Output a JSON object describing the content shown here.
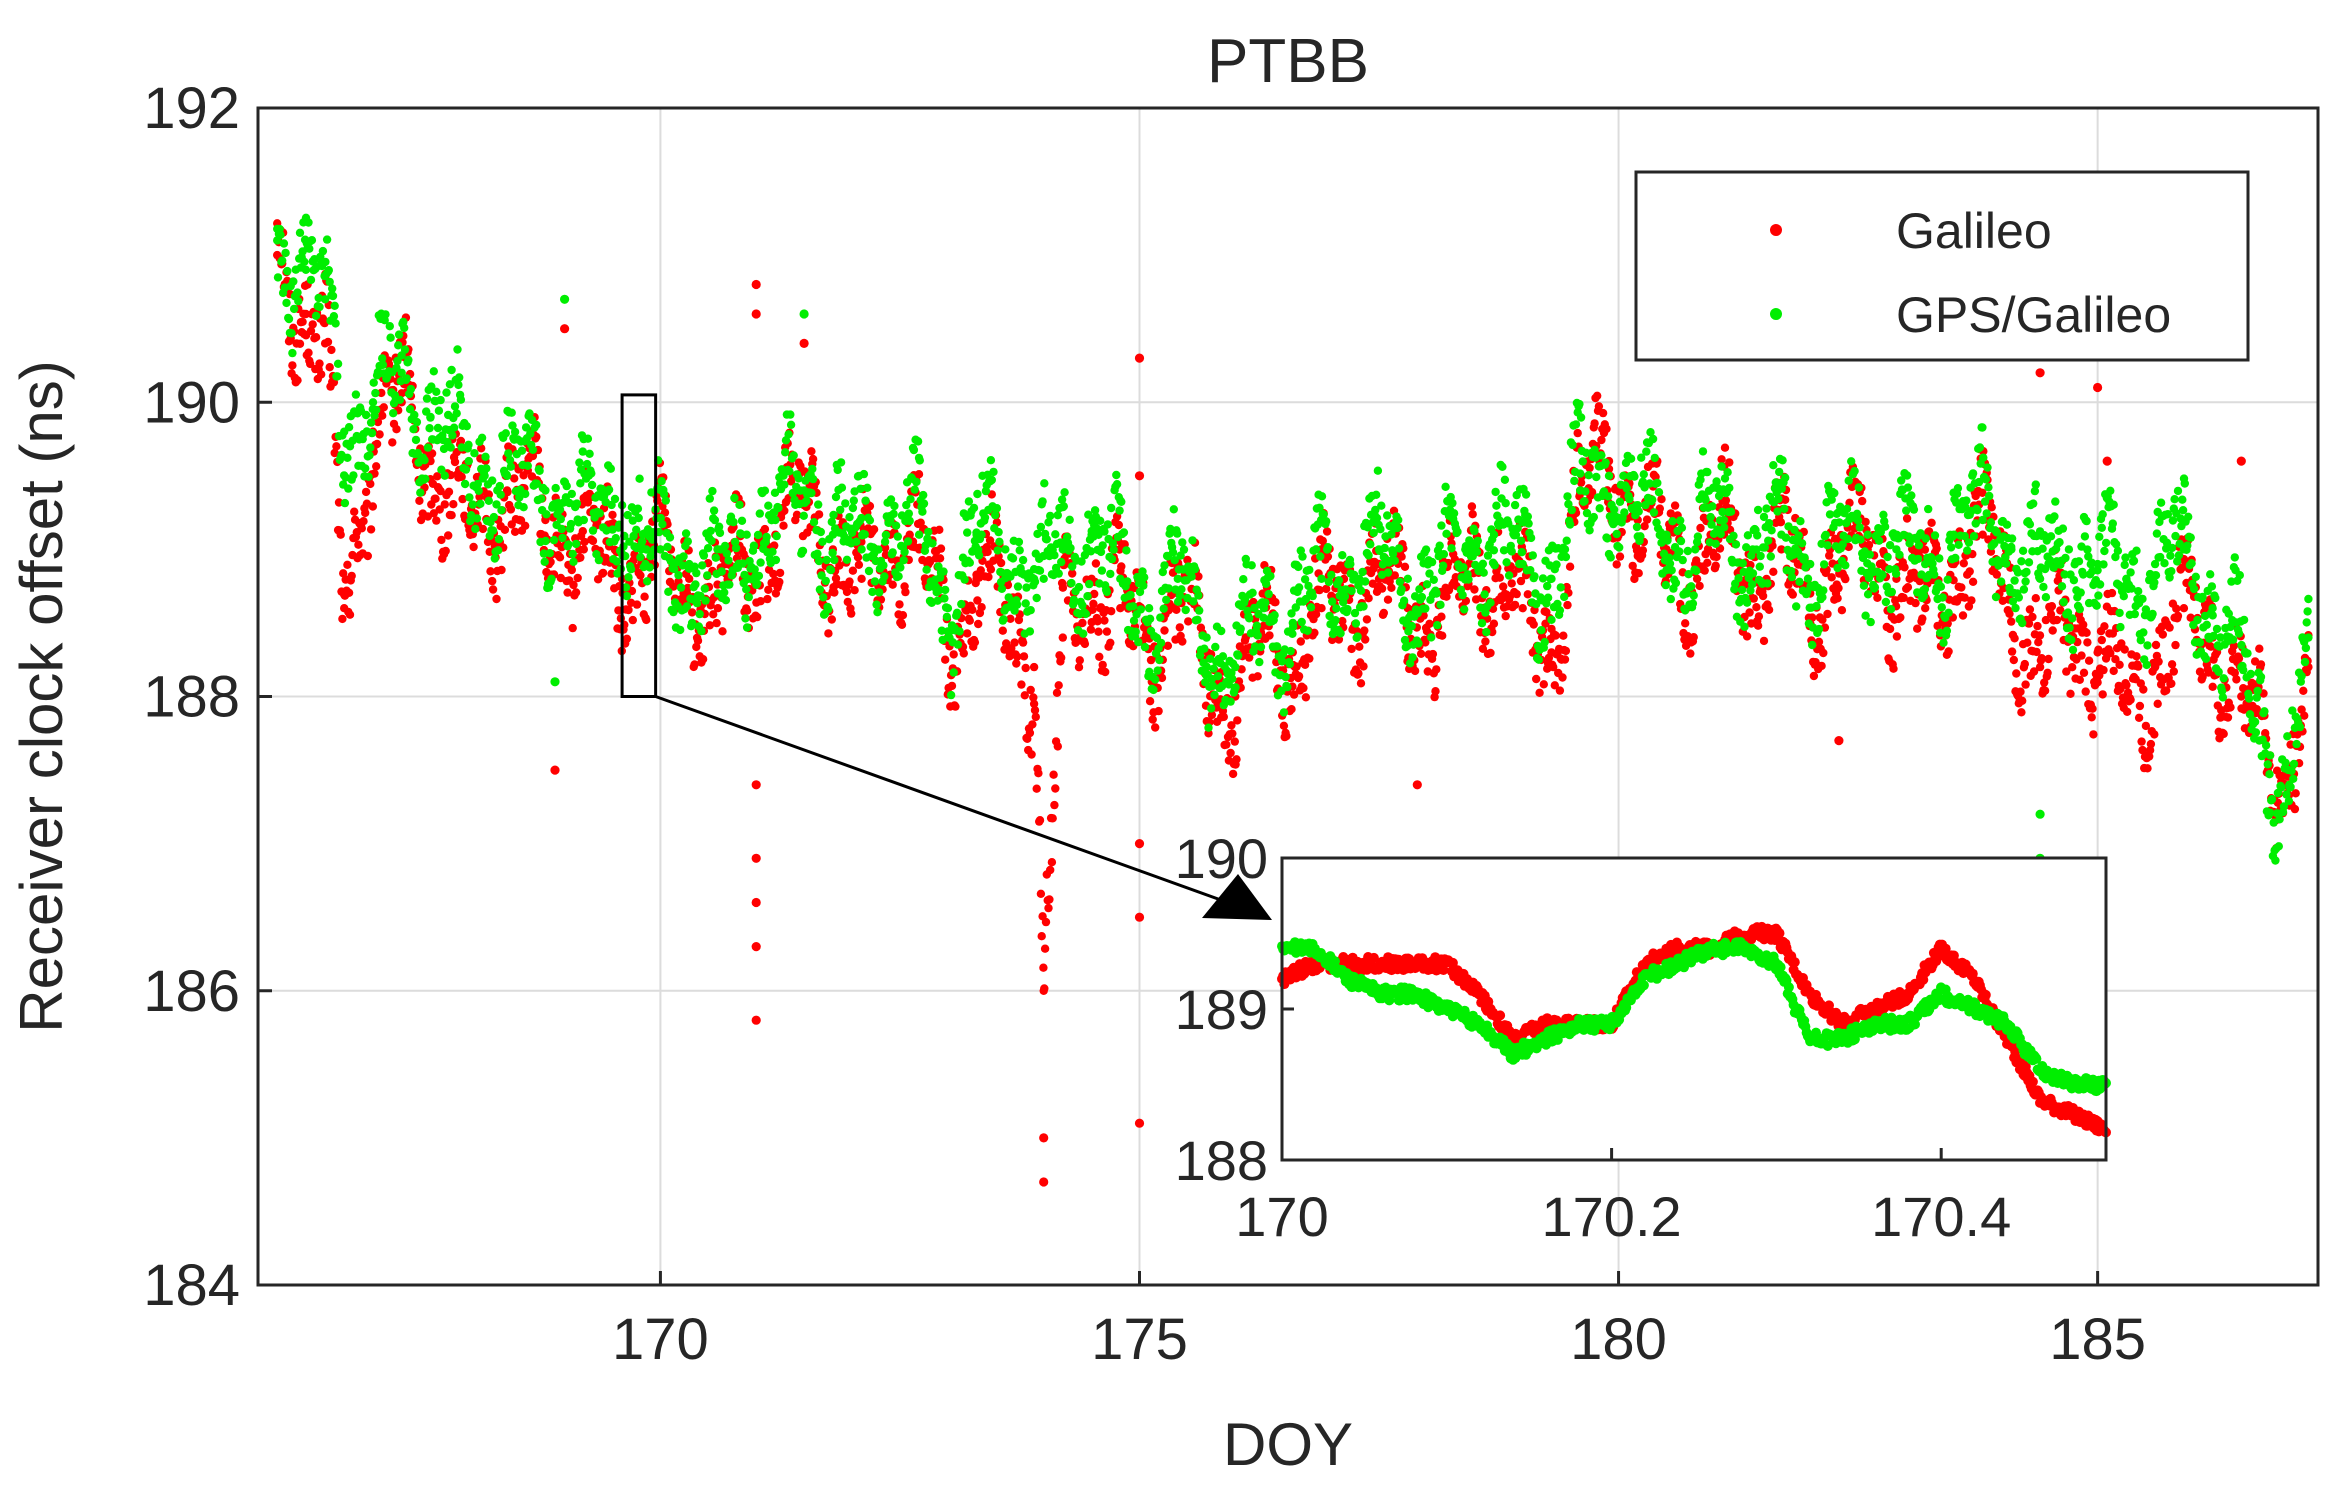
{
  "chart_data": [
    {
      "type": "scatter",
      "title": "PTBB",
      "xlabel": "DOY",
      "ylabel": "Receiver clock offset (ns)",
      "xlim": [
        165.8,
        187.3
      ],
      "ylim": [
        184,
        192
      ],
      "xticks": [
        "170",
        "175",
        "180",
        "185"
      ],
      "yticks": [
        "184",
        "186",
        "188",
        "190",
        "192"
      ],
      "grid": true,
      "legend_position": "top-right",
      "series": [
        {
          "name": "Galileo",
          "color": "#ff0000",
          "x": [
            166.0,
            166.3,
            166.5,
            166.7,
            167.0,
            167.3,
            167.6,
            168.0,
            168.4,
            168.8,
            169.2,
            169.6,
            169.8,
            170.0,
            170.3,
            170.6,
            170.9,
            171.2,
            171.5,
            171.8,
            172.1,
            172.4,
            172.7,
            173.0,
            173.3,
            173.6,
            173.9,
            174.0,
            174.2,
            174.5,
            174.8,
            175.1,
            175.4,
            175.7,
            176.0,
            176.3,
            176.6,
            176.9,
            177.2,
            177.5,
            177.8,
            178.1,
            178.4,
            178.7,
            179.0,
            179.3,
            179.6,
            179.9,
            180.2,
            180.5,
            180.8,
            181.1,
            181.4,
            181.7,
            182.0,
            182.3,
            182.6,
            182.9,
            183.2,
            183.5,
            183.8,
            184.1,
            184.4,
            184.7,
            185.0,
            185.3,
            185.6,
            185.9,
            186.2,
            186.5,
            186.8,
            187.0,
            187.2
          ],
          "y": [
            191.0,
            190.6,
            190.4,
            188.6,
            189.8,
            190.0,
            189.6,
            189.2,
            189.4,
            189.2,
            189.0,
            188.8,
            188.9,
            189.0,
            188.8,
            188.6,
            188.9,
            189.1,
            189.3,
            189.0,
            188.8,
            189.1,
            189.0,
            188.4,
            188.8,
            188.6,
            188.2,
            186.0,
            188.4,
            188.8,
            188.6,
            188.4,
            188.7,
            188.2,
            188.0,
            188.4,
            188.3,
            188.6,
            188.7,
            188.8,
            188.6,
            188.5,
            188.8,
            188.9,
            188.6,
            188.3,
            189.4,
            189.6,
            189.2,
            189.0,
            188.9,
            189.1,
            188.8,
            189.0,
            188.7,
            188.9,
            189.0,
            188.8,
            188.6,
            188.9,
            189.1,
            188.7,
            188.2,
            188.5,
            188.3,
            188.0,
            188.2,
            188.6,
            188.4,
            188.0,
            187.6,
            187.5,
            188.2
          ],
          "outliers_x": [
            168.9,
            169.0,
            171.0,
            171.0,
            171.0,
            171.0,
            171.0,
            171.0,
            171.0,
            171.5,
            174.0,
            174.0,
            175.0,
            175.0,
            175.0,
            175.0,
            175.0,
            177.9,
            182.3,
            184.4,
            185.0,
            185.1,
            186.5
          ],
          "outliers_y": [
            187.5,
            190.5,
            190.8,
            190.6,
            187.4,
            186.9,
            186.6,
            186.3,
            185.8,
            190.4,
            185.0,
            184.7,
            190.3,
            187.0,
            186.5,
            185.1,
            189.5,
            187.4,
            187.7,
            190.2,
            190.1,
            189.6,
            189.6
          ]
        },
        {
          "name": "GPS/Galileo",
          "color": "#00ee00",
          "x": [
            166.0,
            166.3,
            166.5,
            166.7,
            167.0,
            167.3,
            167.6,
            168.0,
            168.4,
            168.8,
            169.2,
            169.6,
            169.8,
            170.0,
            170.3,
            170.6,
            170.9,
            171.2,
            171.5,
            171.8,
            172.1,
            172.4,
            172.7,
            173.0,
            173.3,
            173.6,
            173.9,
            174.0,
            174.2,
            174.5,
            174.8,
            175.1,
            175.4,
            175.7,
            176.0,
            176.3,
            176.6,
            176.9,
            177.2,
            177.5,
            177.8,
            178.1,
            178.4,
            178.7,
            179.0,
            179.3,
            179.6,
            179.9,
            180.2,
            180.5,
            180.8,
            181.1,
            181.4,
            181.7,
            182.0,
            182.3,
            182.6,
            182.9,
            183.2,
            183.5,
            183.8,
            184.1,
            184.4,
            184.7,
            185.0,
            185.3,
            185.6,
            185.9,
            186.2,
            186.5,
            186.8,
            187.0,
            187.2
          ],
          "y": [
            191.1,
            190.9,
            190.7,
            189.8,
            190.0,
            190.2,
            189.9,
            189.6,
            189.5,
            189.4,
            189.2,
            189.3,
            189.0,
            189.0,
            188.9,
            188.7,
            189.1,
            189.2,
            189.4,
            189.1,
            189.0,
            189.2,
            189.1,
            188.6,
            189.1,
            189.0,
            188.8,
            188.8,
            189.0,
            189.1,
            188.8,
            188.6,
            188.8,
            188.4,
            188.2,
            188.6,
            188.5,
            188.8,
            188.9,
            189.0,
            188.8,
            188.7,
            189.0,
            189.1,
            188.9,
            188.8,
            189.4,
            189.5,
            189.3,
            189.1,
            189.0,
            189.2,
            189.0,
            189.1,
            188.9,
            189.0,
            189.1,
            189.0,
            188.9,
            189.1,
            189.2,
            189.0,
            188.8,
            189.0,
            188.9,
            188.8,
            188.9,
            189.0,
            188.6,
            188.2,
            187.6,
            187.4,
            188.4
          ],
          "outliers_x": [
            169.0,
            171.5,
            168.9,
            184.4,
            184.4
          ],
          "outliers_y": [
            190.7,
            190.6,
            188.1,
            187.2,
            186.9
          ]
        }
      ]
    },
    {
      "type": "scatter",
      "title": "",
      "xlabel": "",
      "ylabel": "",
      "xlim": [
        170,
        170.5
      ],
      "ylim": [
        188,
        190
      ],
      "xticks": [
        "170",
        "170.2",
        "170.4"
      ],
      "yticks": [
        "188",
        "189",
        "190"
      ],
      "series": [
        {
          "name": "Galileo",
          "color": "#ff0000",
          "x": [
            170.0,
            170.02,
            170.04,
            170.06,
            170.08,
            170.1,
            170.12,
            170.14,
            170.16,
            170.18,
            170.2,
            170.22,
            170.24,
            170.26,
            170.28,
            170.3,
            170.32,
            170.34,
            170.36,
            170.38,
            170.4,
            170.42,
            170.44,
            170.46,
            170.48,
            170.5
          ],
          "y": [
            189.2,
            189.3,
            189.3,
            189.3,
            189.3,
            189.3,
            189.1,
            188.8,
            188.9,
            188.9,
            188.9,
            189.3,
            189.4,
            189.4,
            189.5,
            189.5,
            189.1,
            188.9,
            189.0,
            189.1,
            189.4,
            189.2,
            188.8,
            188.4,
            188.3,
            188.2
          ]
        },
        {
          "name": "GPS/Galileo",
          "color": "#00ee00",
          "x": [
            170.0,
            170.02,
            170.04,
            170.06,
            170.08,
            170.1,
            170.12,
            170.14,
            170.16,
            170.18,
            170.2,
            170.22,
            170.24,
            170.26,
            170.28,
            170.3,
            170.32,
            170.34,
            170.36,
            170.38,
            170.4,
            170.42,
            170.44,
            170.46,
            170.48,
            170.5
          ],
          "y": [
            189.4,
            189.4,
            189.2,
            189.1,
            189.1,
            189.0,
            188.9,
            188.7,
            188.8,
            188.9,
            188.9,
            189.2,
            189.3,
            189.4,
            189.4,
            189.3,
            188.8,
            188.8,
            188.9,
            188.9,
            189.1,
            189.0,
            188.9,
            188.6,
            188.5,
            188.5
          ]
        }
      ]
    }
  ]
}
